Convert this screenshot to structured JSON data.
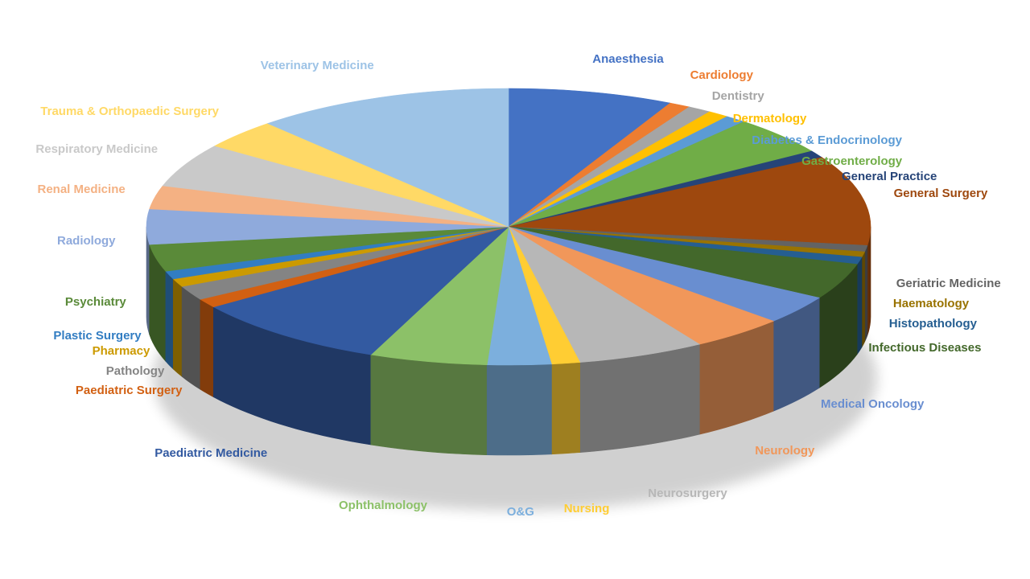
{
  "chart_data": {
    "type": "pie",
    "three_d": true,
    "legend": "none",
    "start_angle_deg": 0,
    "direction": "clockwise",
    "slices": [
      {
        "label": "Anaesthesia",
        "value": 7.0,
        "color": "#4472C4"
      },
      {
        "label": "Cardiology",
        "value": 0.9,
        "color": "#ED7D31"
      },
      {
        "label": "Dentistry",
        "value": 1.0,
        "color": "#A5A5A5"
      },
      {
        "label": "Dermatology",
        "value": 0.9,
        "color": "#FFC000"
      },
      {
        "label": "Diabetes & Endocrinology",
        "value": 0.9,
        "color": "#5B9BD5"
      },
      {
        "label": "Gastroenterology",
        "value": 4.3,
        "color": "#70AD47"
      },
      {
        "label": "General Practice",
        "value": 0.8,
        "color": "#264478"
      },
      {
        "label": "General Surgery",
        "value": 10.0,
        "color": "#9E480E"
      },
      {
        "label": "Geriatric Medicine",
        "value": 0.7,
        "color": "#636363"
      },
      {
        "label": "Haematology",
        "value": 0.6,
        "color": "#997300"
      },
      {
        "label": "Histopathology",
        "value": 0.8,
        "color": "#255E91"
      },
      {
        "label": "Infectious Diseases",
        "value": 4.0,
        "color": "#43682B"
      },
      {
        "label": "Medical Oncology",
        "value": 3.2,
        "color": "#698ED0"
      },
      {
        "label": "Neurology",
        "value": 4.0,
        "color": "#F1975A"
      },
      {
        "label": "Neurosurgery",
        "value": 5.4,
        "color": "#B7B7B7"
      },
      {
        "label": "Nursing",
        "value": 1.2,
        "color": "#FFCD33"
      },
      {
        "label": "O&G",
        "value": 2.7,
        "color": "#7CAFDD"
      },
      {
        "label": "Ophthalmology",
        "value": 5.0,
        "color": "#8CC168"
      },
      {
        "label": "Paediatric Medicine",
        "value": 8.5,
        "color": "#335AA1"
      },
      {
        "label": "Paediatric Surgery",
        "value": 1.0,
        "color": "#D26012"
      },
      {
        "label": "Pathology",
        "value": 1.6,
        "color": "#848484"
      },
      {
        "label": "Pharmacy",
        "value": 0.9,
        "color": "#CC9A00"
      },
      {
        "label": "Plastic Surgery",
        "value": 0.9,
        "color": "#327DC2"
      },
      {
        "label": "Psychiatry",
        "value": 3.0,
        "color": "#5A8A39"
      },
      {
        "label": "Radiology",
        "value": 3.9,
        "color": "#8FAADC"
      },
      {
        "label": "Renal Medicine",
        "value": 2.6,
        "color": "#F4B183"
      },
      {
        "label": "Respiratory Medicine",
        "value": 4.9,
        "color": "#C9C9C9"
      },
      {
        "label": "Trauma & Orthopaedic Surgery",
        "value": 3.3,
        "color": "#FFD966"
      },
      {
        "label": "Veterinary Medicine",
        "value": 11.0,
        "color": "#9DC3E6"
      }
    ]
  }
}
